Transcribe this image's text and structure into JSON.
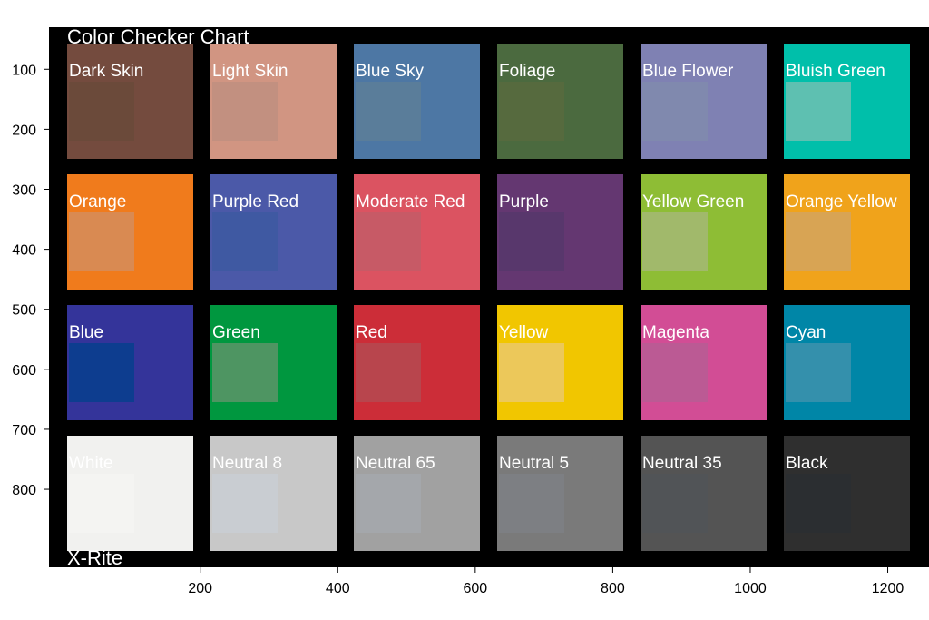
{
  "chart_data": {
    "type": "heatmap",
    "title": "",
    "xlabel": "",
    "ylabel": "",
    "xlim": [
      -20,
      1260
    ],
    "ylim": [
      930,
      30
    ],
    "xticks": [
      200,
      400,
      600,
      800,
      1000,
      1200
    ],
    "yticks": [
      100,
      200,
      300,
      400,
      500,
      600,
      700,
      800
    ],
    "grid": false,
    "background": "#000000",
    "overlay_text": {
      "top_left": "Color Checker Chart",
      "bottom_left": "X-Rite"
    },
    "patches": [
      {
        "label": "Dark Skin",
        "row": 0,
        "col": 0,
        "color": "#744b3e",
        "inner_color": "#6b4a3a"
      },
      {
        "label": "Light Skin",
        "row": 0,
        "col": 1,
        "color": "#d19582",
        "inner_color": "#c29080"
      },
      {
        "label": "Blue Sky",
        "row": 0,
        "col": 2,
        "color": "#4d77a4",
        "inner_color": "#5a7d9a"
      },
      {
        "label": "Foliage",
        "row": 0,
        "col": 3,
        "color": "#4b6a3f",
        "inner_color": "#566a3e"
      },
      {
        "label": "Blue Flower",
        "row": 0,
        "col": 4,
        "color": "#7f81b3",
        "inner_color": "#8089ae"
      },
      {
        "label": "Bluish Green",
        "row": 0,
        "col": 5,
        "color": "#00bfaa",
        "inner_color": "#5ec0b1"
      },
      {
        "label": "Orange",
        "row": 1,
        "col": 0,
        "color": "#f07b1c",
        "inner_color": "#d98a52"
      },
      {
        "label": "Purple Red",
        "row": 1,
        "col": 1,
        "color": "#4b59a8",
        "inner_color": "#3f59a2"
      },
      {
        "label": "Moderate Red",
        "row": 1,
        "col": 2,
        "color": "#db5361",
        "inner_color": "#c75a66"
      },
      {
        "label": "Purple",
        "row": 1,
        "col": 3,
        "color": "#643771",
        "inner_color": "#58376c"
      },
      {
        "label": "Yellow Green",
        "row": 1,
        "col": 4,
        "color": "#8ebd35",
        "inner_color": "#a1b96b"
      },
      {
        "label": "Orange Yellow",
        "row": 1,
        "col": 5,
        "color": "#f0a31b",
        "inner_color": "#d8a454"
      },
      {
        "label": "Blue",
        "row": 2,
        "col": 0,
        "color": "#34349a",
        "inner_color": "#0d3d8f"
      },
      {
        "label": "Green",
        "row": 2,
        "col": 1,
        "color": "#00973f",
        "inner_color": "#4e9562"
      },
      {
        "label": "Red",
        "row": 2,
        "col": 2,
        "color": "#cc2d38",
        "inner_color": "#b8454d"
      },
      {
        "label": "Yellow",
        "row": 2,
        "col": 3,
        "color": "#f1c600",
        "inner_color": "#ecc85a"
      },
      {
        "label": "Magenta",
        "row": 2,
        "col": 4,
        "color": "#d24d95",
        "inner_color": "#bb5a94"
      },
      {
        "label": "Cyan",
        "row": 2,
        "col": 5,
        "color": "#0086a7",
        "inner_color": "#3490ac"
      },
      {
        "label": "White",
        "row": 3,
        "col": 0,
        "color": "#f1f1ef",
        "inner_color": "#f4f4f2"
      },
      {
        "label": "Neutral 8",
        "row": 3,
        "col": 1,
        "color": "#c8c8c8",
        "inner_color": "#c9cdd2"
      },
      {
        "label": "Neutral 65",
        "row": 3,
        "col": 2,
        "color": "#a1a1a1",
        "inner_color": "#a4a7ab"
      },
      {
        "label": "Neutral 5",
        "row": 3,
        "col": 3,
        "color": "#7a7a7a",
        "inner_color": "#7d7f83"
      },
      {
        "label": "Neutral 35",
        "row": 3,
        "col": 4,
        "color": "#545454",
        "inner_color": "#515457"
      },
      {
        "label": "Black",
        "row": 3,
        "col": 5,
        "color": "#2f2f2f",
        "inner_color": "#2b2e31"
      }
    ]
  }
}
